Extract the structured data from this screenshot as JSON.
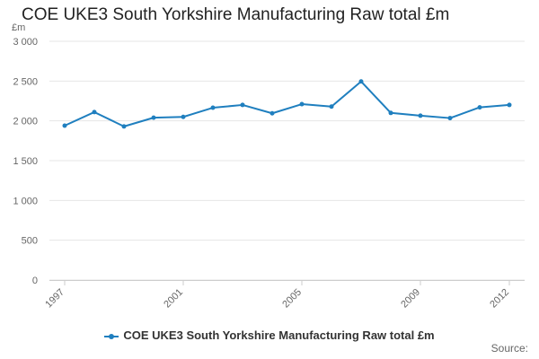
{
  "chart_data": {
    "type": "line",
    "title": "COE UKE3 South Yorkshire Manufacturing Raw total £m",
    "y_unit": "£m",
    "x": [
      1997,
      1998,
      1999,
      2000,
      2001,
      2002,
      2003,
      2004,
      2005,
      2006,
      2007,
      2008,
      2009,
      2010,
      2011,
      2012
    ],
    "x_tick_labels": [
      "1997",
      "2001",
      "2005",
      "2009",
      "2012"
    ],
    "x_tick_values": [
      1997,
      2001,
      2005,
      2009,
      2012
    ],
    "y_ticks": [
      0,
      500,
      1000,
      1500,
      2000,
      2500,
      3000
    ],
    "y_tick_labels": [
      "0",
      "500",
      "1 000",
      "1 500",
      "2 000",
      "2 500",
      "3 000"
    ],
    "ylim": [
      0,
      3000
    ],
    "series": [
      {
        "name": "COE UKE3 South Yorkshire Manufacturing Raw total £m",
        "color": "#1f7fbf",
        "values": [
          1940,
          2110,
          1930,
          2040,
          2050,
          2165,
          2200,
          2095,
          2210,
          2180,
          2495,
          2100,
          2065,
          2035,
          2170,
          2200
        ]
      }
    ],
    "grid": true,
    "legend_position": "bottom"
  },
  "footer": {
    "source_label": "Source:"
  }
}
